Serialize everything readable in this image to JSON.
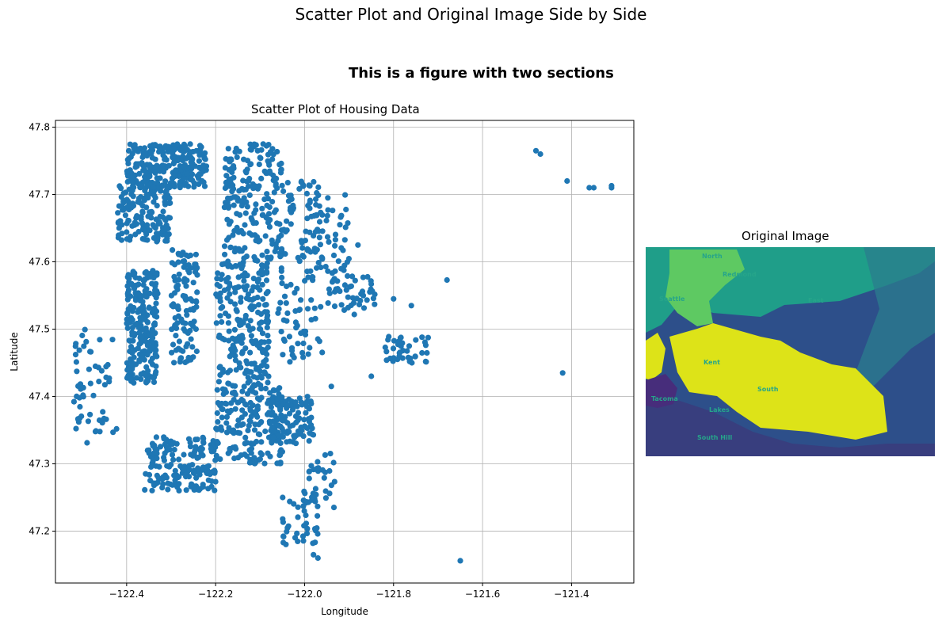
{
  "figure": {
    "suptitle": "Scatter Plot and Original Image Side by Side",
    "section_title": "This is a figure with two sections"
  },
  "chart_data": [
    {
      "type": "scatter",
      "title": "Scatter Plot of Housing Data",
      "xlabel": "Longitude",
      "ylabel": "Latitude",
      "xlim": [
        -122.56,
        -121.26
      ],
      "ylim": [
        47.123,
        47.81
      ],
      "xticks": [
        -122.4,
        -122.2,
        -122.0,
        -121.8,
        -121.6,
        -121.4
      ],
      "xtick_labels": [
        "−122.4",
        "−122.2",
        "−122.0",
        "−121.8",
        "−121.6",
        "−121.4"
      ],
      "yticks": [
        47.2,
        47.3,
        47.4,
        47.5,
        47.6,
        47.7,
        47.8
      ],
      "ytick_labels": [
        "47.2",
        "47.3",
        "47.4",
        "47.5",
        "47.6",
        "47.7",
        "47.8"
      ],
      "grid": true,
      "marker_color": "#1f77b4",
      "point_clusters": [
        {
          "x": [
            -122.4,
            -122.22
          ],
          "y": [
            47.71,
            47.775
          ],
          "n": 260
        },
        {
          "x": [
            -122.42,
            -122.3
          ],
          "y": [
            47.63,
            47.72
          ],
          "n": 160
        },
        {
          "x": [
            -122.4,
            -122.33
          ],
          "y": [
            47.42,
            47.59
          ],
          "n": 230
        },
        {
          "x": [
            -122.36,
            -122.2
          ],
          "y": [
            47.26,
            47.34
          ],
          "n": 170
        },
        {
          "x": [
            -122.3,
            -122.24
          ],
          "y": [
            47.45,
            47.62
          ],
          "n": 110
        },
        {
          "x": [
            -122.18,
            -122.05
          ],
          "y": [
            47.6,
            47.775
          ],
          "n": 200
        },
        {
          "x": [
            -122.2,
            -122.08
          ],
          "y": [
            47.42,
            47.6
          ],
          "n": 210
        },
        {
          "x": [
            -122.2,
            -122.05
          ],
          "y": [
            47.3,
            47.42
          ],
          "n": 170
        },
        {
          "x": [
            -122.08,
            -121.98
          ],
          "y": [
            47.33,
            47.4
          ],
          "n": 120
        },
        {
          "x": [
            -122.06,
            -121.96
          ],
          "y": [
            47.45,
            47.72
          ],
          "n": 120
        },
        {
          "x": [
            -122.0,
            -121.9
          ],
          "y": [
            47.58,
            47.7
          ],
          "n": 50
        },
        {
          "x": [
            -121.95,
            -121.84
          ],
          "y": [
            47.52,
            47.58
          ],
          "n": 45
        },
        {
          "x": [
            -121.82,
            -121.72
          ],
          "y": [
            47.45,
            47.49
          ],
          "n": 40
        },
        {
          "x": [
            -122.52,
            -122.42
          ],
          "y": [
            47.33,
            47.5
          ],
          "n": 55
        },
        {
          "x": [
            -122.05,
            -121.97
          ],
          "y": [
            47.18,
            47.26
          ],
          "n": 45
        },
        {
          "x": [
            -121.99,
            -121.93
          ],
          "y": [
            47.23,
            47.32
          ],
          "n": 25
        }
      ],
      "outlier_points": [
        {
          "x": -121.48,
          "y": 47.765
        },
        {
          "x": -121.47,
          "y": 47.76
        },
        {
          "x": -121.41,
          "y": 47.72
        },
        {
          "x": -121.36,
          "y": 47.71
        },
        {
          "x": -121.35,
          "y": 47.71
        },
        {
          "x": -121.31,
          "y": 47.713
        },
        {
          "x": -121.31,
          "y": 47.71
        },
        {
          "x": -121.68,
          "y": 47.573
        },
        {
          "x": -121.65,
          "y": 47.156
        },
        {
          "x": -121.42,
          "y": 47.435
        },
        {
          "x": -121.85,
          "y": 47.43
        },
        {
          "x": -121.94,
          "y": 47.415
        },
        {
          "x": -121.98,
          "y": 47.165
        },
        {
          "x": -121.97,
          "y": 47.16
        },
        {
          "x": -121.88,
          "y": 47.625
        },
        {
          "x": -121.8,
          "y": 47.545
        },
        {
          "x": -121.76,
          "y": 47.535
        }
      ]
    },
    {
      "type": "image",
      "title": "Original Image",
      "colormap": "viridis",
      "labels": [
        "North",
        "Redmond",
        "Seattle",
        "East",
        "Kent",
        "South",
        "Tacoma",
        "Lakes",
        "South Hill"
      ]
    }
  ]
}
